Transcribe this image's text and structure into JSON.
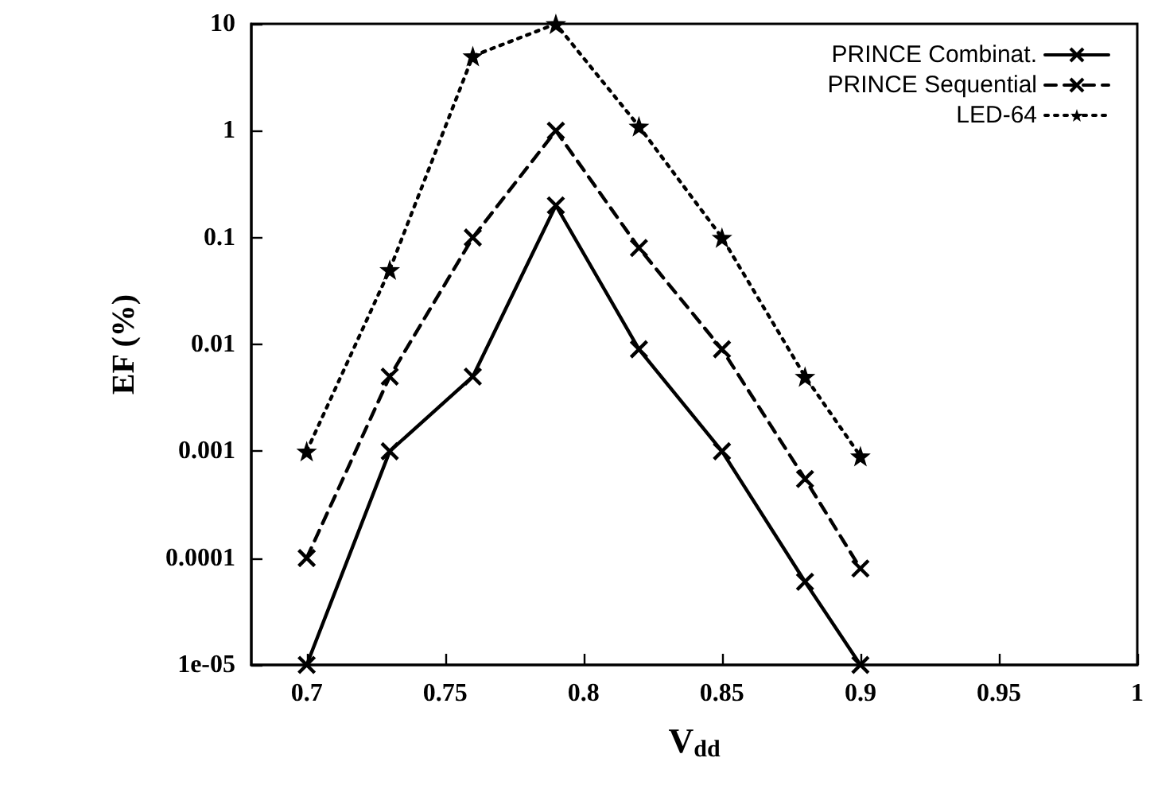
{
  "chart_data": {
    "type": "line",
    "xlabel": "V$_{dd}$",
    "ylabel": "EF (%)",
    "log": "y",
    "grid": false,
    "legend": "top right",
    "x": [
      0.7,
      0.73,
      0.76,
      0.79,
      0.82,
      0.85,
      0.88,
      0.9
    ],
    "xlim": [
      0.68,
      1
    ],
    "xticks": [
      0.7,
      0.75,
      0.8,
      0.85,
      0.9,
      0.95,
      1
    ],
    "ylim": [
      1e-05,
      10
    ],
    "yticks": [
      {
        "value": 1e-05,
        "label": "1e-05"
      },
      0.0001,
      0.001,
      0.01,
      0.1,
      1,
      10
    ],
    "series": [
      {
        "name": "PRINCE Combinat.",
        "color": "#000000",
        "marker": "cross",
        "line_style": "solid",
        "values": [
          1e-05,
          0.001,
          0.005,
          0.2,
          0.009,
          0.001,
          6e-05,
          1e-05
        ]
      },
      {
        "name": "PRINCE Sequential",
        "color": "#000000",
        "marker": "cross",
        "line_style": "dashed",
        "values": [
          0.0001,
          0.005,
          0.1,
          1,
          0.08,
          0.009,
          0.00055,
          8e-05
        ]
      },
      {
        "name": "LED-64",
        "color": "#000000",
        "marker": "star",
        "line_style": "dotted",
        "values": [
          0.001,
          0.05,
          5,
          10,
          1.1,
          0.1,
          0.005,
          0.0009
        ]
      }
    ]
  }
}
